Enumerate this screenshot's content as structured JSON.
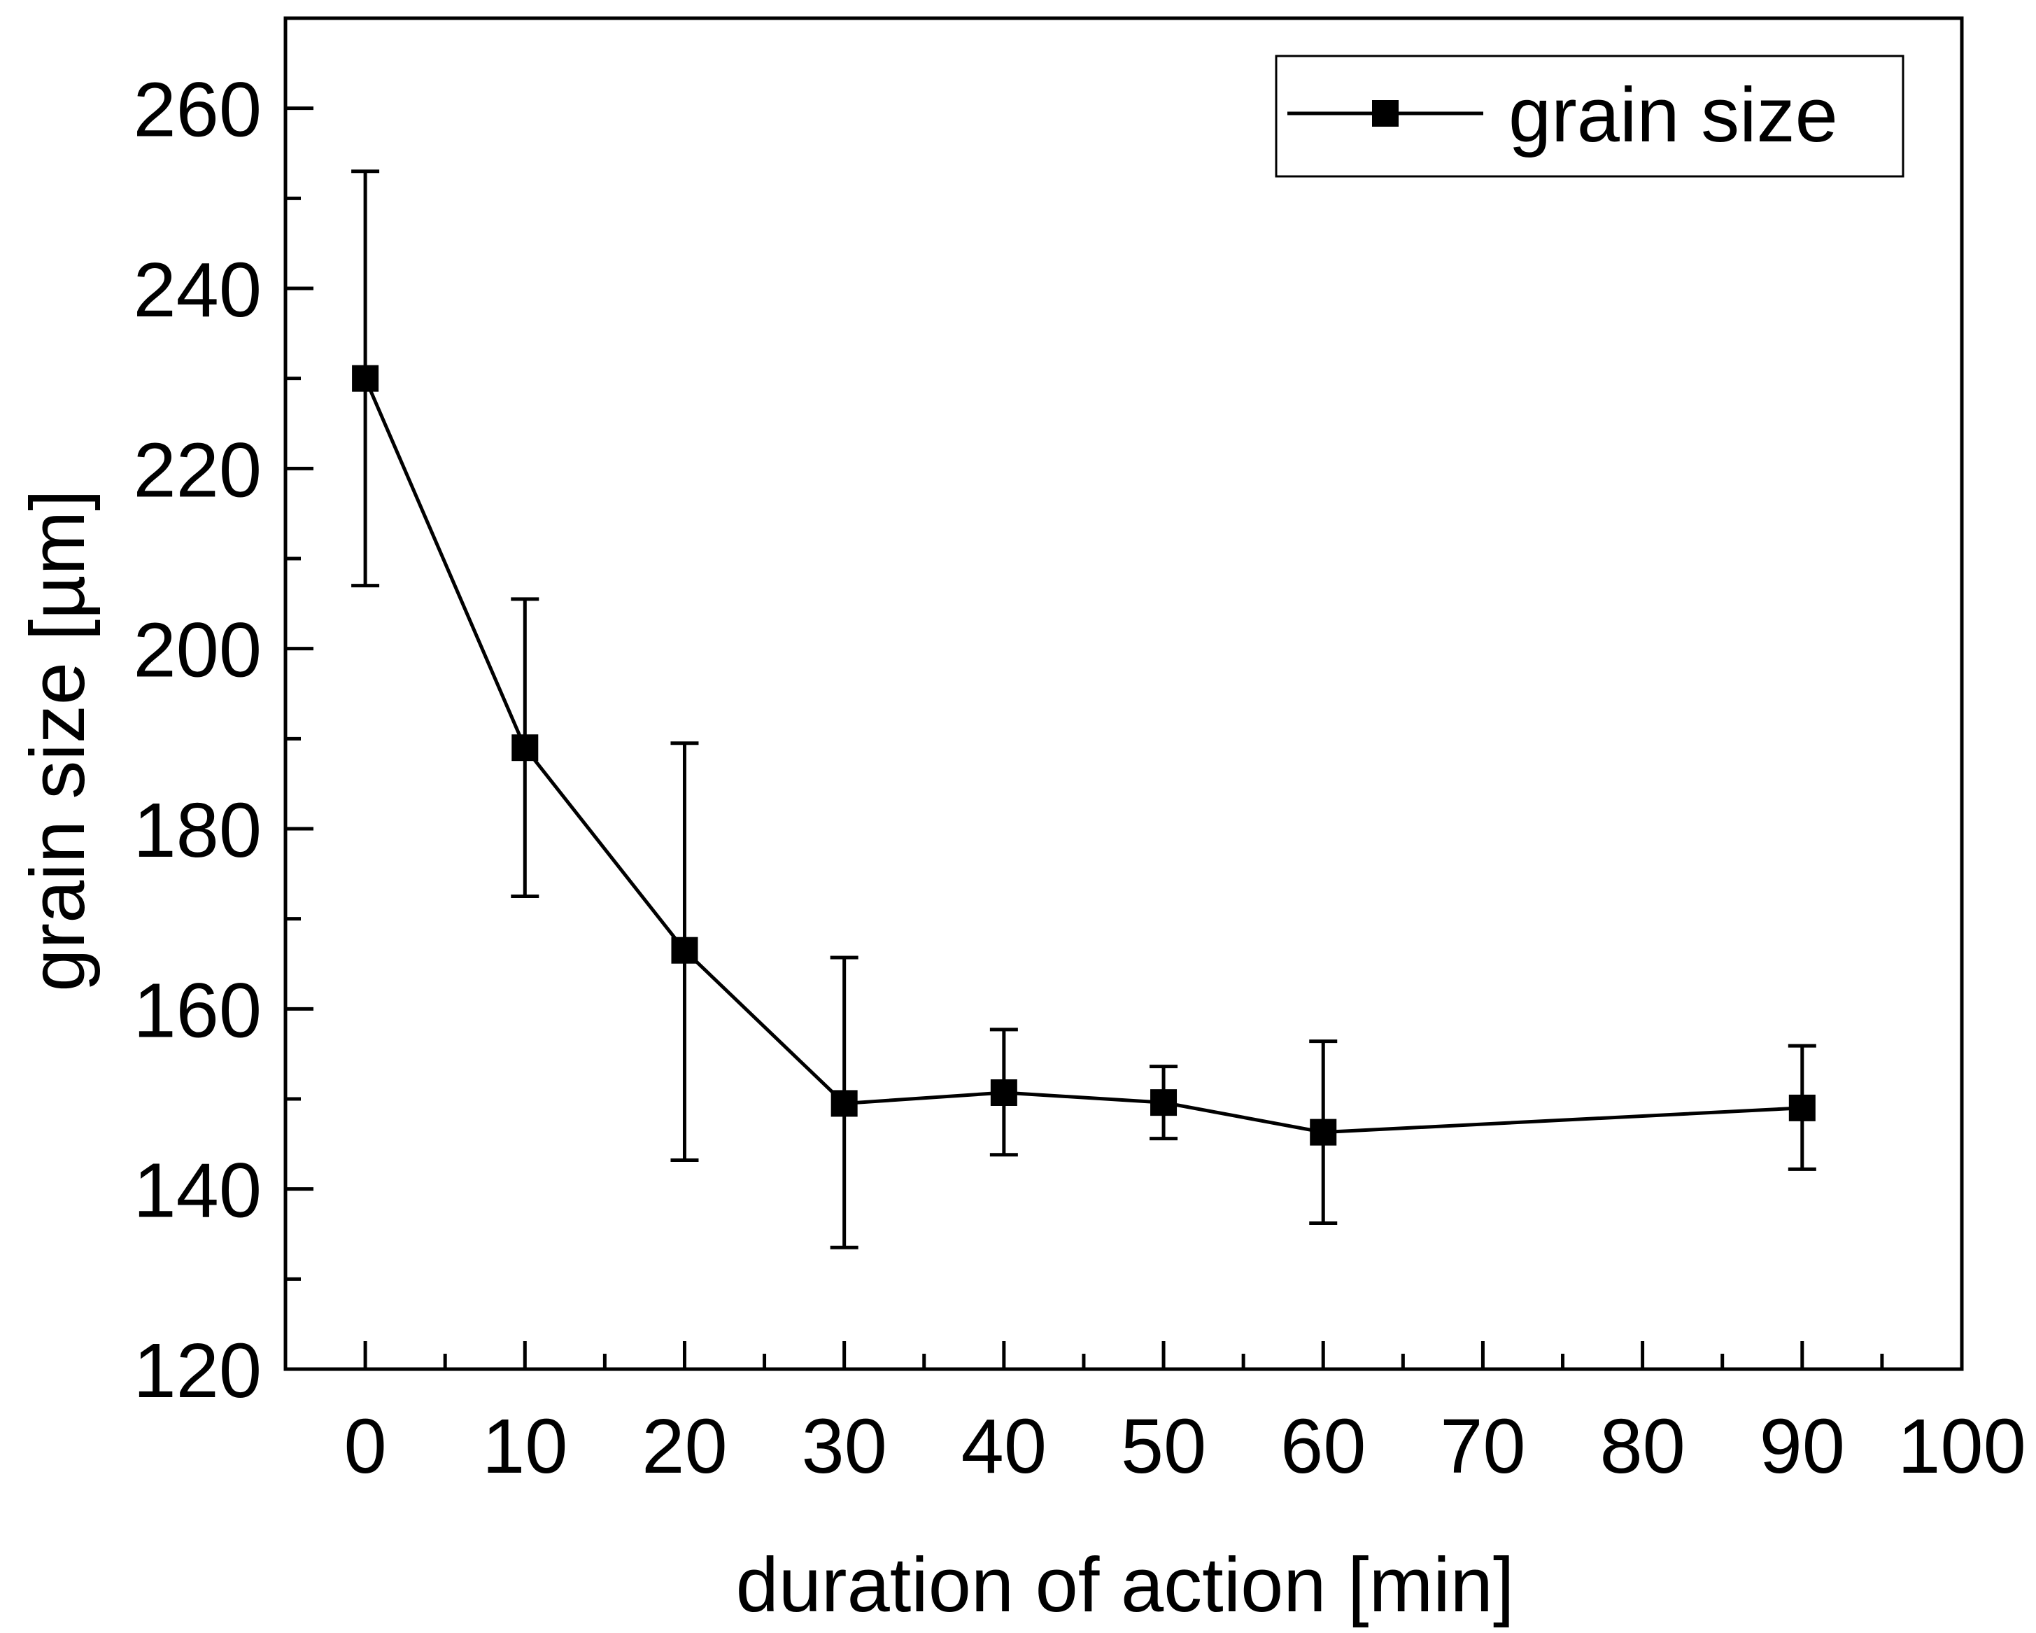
{
  "chart_data": {
    "type": "line",
    "title": "",
    "xlabel": "duration of action [min]",
    "ylabel": "grain size [µm]",
    "xlim": [
      -5,
      100
    ],
    "ylim": [
      120,
      270
    ],
    "x_ticks": [
      0,
      10,
      20,
      30,
      40,
      50,
      60,
      70,
      80,
      90,
      100
    ],
    "x_tick_labels": [
      "0",
      "10",
      "20",
      "30",
      "40",
      "50",
      "60",
      "70",
      "80",
      "90",
      "100"
    ],
    "y_ticks": [
      120,
      140,
      160,
      180,
      200,
      220,
      240,
      260
    ],
    "y_tick_labels": [
      "120",
      "140",
      "160",
      "180",
      "200",
      "220",
      "240",
      "260"
    ],
    "grid": false,
    "legend": {
      "position": "top-right",
      "entries": [
        "grain size"
      ]
    },
    "colors": {
      "series": "#000000",
      "axes": "#000000",
      "background": "#ffffff"
    },
    "series": [
      {
        "name": "grain size",
        "marker": "square",
        "x": [
          0,
          10,
          20,
          30,
          40,
          50,
          60,
          90
        ],
        "y": [
          230,
          189,
          166.5,
          149.5,
          150.7,
          149.6,
          146.3,
          149
        ],
        "error_low": [
          207,
          172.5,
          143.2,
          133.5,
          143.8,
          145.6,
          136.2,
          142.2
        ],
        "error_high": [
          253,
          205.5,
          189.5,
          165.7,
          157.7,
          153.6,
          156.4,
          155.9
        ]
      }
    ]
  }
}
